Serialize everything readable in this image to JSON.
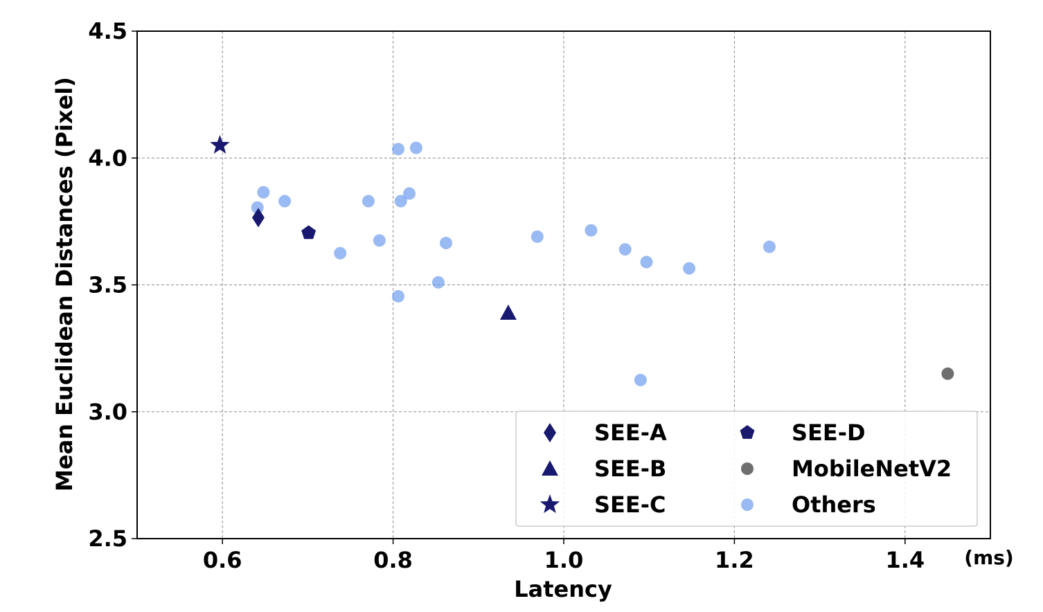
{
  "chart_data": {
    "type": "scatter",
    "title": "",
    "xlabel": "Latency",
    "xunit": "(ms)",
    "ylabel": "Mean Euclidean Distances (Pixel)",
    "xlim": [
      0.5,
      1.5
    ],
    "ylim": [
      2.5,
      4.5
    ],
    "xticks": [
      "0.6",
      "0.8",
      "1.0",
      "1.2",
      "1.4"
    ],
    "xtick_values": [
      0.6,
      0.8,
      1.0,
      1.2,
      1.4
    ],
    "yticks": [
      "2.5",
      "3.0",
      "3.5",
      "4.0",
      "4.5"
    ],
    "ytick_values": [
      2.5,
      3.0,
      3.5,
      4.0,
      4.5
    ],
    "grid": true,
    "legend_position": "bottom-right",
    "series": [
      {
        "name": "Others",
        "marker": "circle",
        "color": "#6495ed",
        "points": [
          [
            0.641,
            3.805
          ],
          [
            0.648,
            3.865
          ],
          [
            0.673,
            3.83
          ],
          [
            0.738,
            3.625
          ],
          [
            0.771,
            3.83
          ],
          [
            0.784,
            3.675
          ],
          [
            0.806,
            4.035
          ],
          [
            0.827,
            4.04
          ],
          [
            0.809,
            3.83
          ],
          [
            0.819,
            3.86
          ],
          [
            0.862,
            3.665
          ],
          [
            0.853,
            3.51
          ],
          [
            0.806,
            3.455
          ],
          [
            0.969,
            3.69
          ],
          [
            1.032,
            3.715
          ],
          [
            1.072,
            3.64
          ],
          [
            1.097,
            3.59
          ],
          [
            1.147,
            3.565
          ],
          [
            1.09,
            3.125
          ],
          [
            1.241,
            3.65
          ]
        ]
      },
      {
        "name": "SEE-A",
        "marker": "diamond",
        "color": "#191970",
        "points": [
          [
            0.642,
            3.765
          ]
        ]
      },
      {
        "name": "SEE-B",
        "marker": "triangle",
        "color": "#191970",
        "points": [
          [
            0.935,
            3.39
          ]
        ]
      },
      {
        "name": "SEE-C",
        "marker": "star",
        "color": "#191970",
        "points": [
          [
            0.597,
            4.05
          ]
        ]
      },
      {
        "name": "SEE-D",
        "marker": "pentagon",
        "color": "#191970",
        "points": [
          [
            0.701,
            3.705
          ]
        ]
      },
      {
        "name": "MobileNetV2",
        "marker": "circle",
        "color": "#666666",
        "points": [
          [
            1.45,
            3.15
          ]
        ]
      }
    ],
    "legend_order": [
      "SEE-A",
      "SEE-B",
      "SEE-C",
      "SEE-D",
      "MobileNetV2",
      "Others"
    ]
  }
}
